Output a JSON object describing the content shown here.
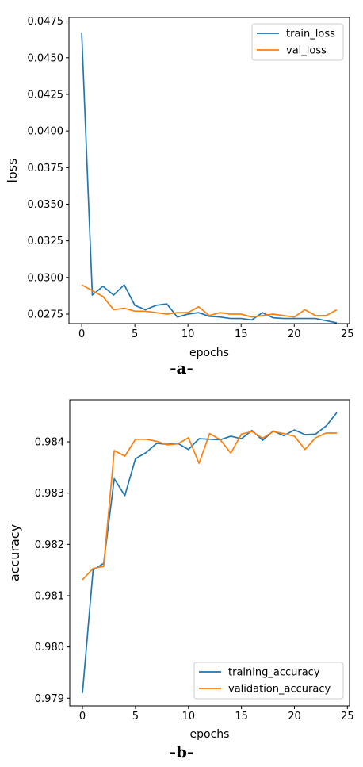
{
  "captions": [
    "-a-",
    "-b-"
  ],
  "colors": {
    "blue": "#1f77b4",
    "orange": "#ff7f0e",
    "axis": "#000000",
    "background": "#ffffff"
  },
  "chart_data": [
    {
      "type": "line",
      "title": "",
      "xlabel": "epochs",
      "ylabel": "loss",
      "xlim": [
        -1.2,
        25.2
      ],
      "ylim": [
        0.02685,
        0.04775
      ],
      "xticks": [
        0,
        5,
        10,
        15,
        20,
        25
      ],
      "xtick_labels": [
        "0",
        "5",
        "10",
        "15",
        "20",
        "25"
      ],
      "yticks": [
        0.0275,
        0.03,
        0.0325,
        0.035,
        0.0375,
        0.04,
        0.0425,
        0.045,
        0.0475
      ],
      "ytick_labels": [
        "0.0275",
        "0.0300",
        "0.0325",
        "0.0350",
        "0.0375",
        "0.0400",
        "0.0425",
        "0.0450",
        "0.0475"
      ],
      "grid": false,
      "legend_position": "top-right",
      "x": [
        0,
        1,
        2,
        3,
        4,
        5,
        6,
        7,
        8,
        9,
        10,
        11,
        12,
        13,
        14,
        15,
        16,
        17,
        18,
        19,
        20,
        21,
        22,
        23,
        24
      ],
      "series": [
        {
          "name": "train_loss",
          "color": "#1f77b4",
          "values": [
            0.0467,
            0.0288,
            0.0294,
            0.0288,
            0.0295,
            0.0281,
            0.0278,
            0.0281,
            0.0282,
            0.0273,
            0.0275,
            0.0276,
            0.02735,
            0.0273,
            0.0272,
            0.0272,
            0.0271,
            0.0276,
            0.02725,
            0.0272,
            0.0272,
            0.0272,
            0.0272,
            0.02705,
            0.0269
          ]
        },
        {
          "name": "val_loss",
          "color": "#ff7f0e",
          "values": [
            0.0295,
            0.0291,
            0.0287,
            0.0278,
            0.0279,
            0.0277,
            0.0277,
            0.0276,
            0.0275,
            0.0276,
            0.0276,
            0.028,
            0.0274,
            0.0276,
            0.0275,
            0.0275,
            0.0273,
            0.0274,
            0.0275,
            0.0274,
            0.0273,
            0.0278,
            0.0274,
            0.0274,
            0.0278
          ]
        }
      ]
    },
    {
      "type": "line",
      "title": "",
      "xlabel": "epochs",
      "ylabel": "accuracy",
      "xlim": [
        -1.2,
        25.2
      ],
      "ylim": [
        0.97885,
        0.98482
      ],
      "xticks": [
        0,
        5,
        10,
        15,
        20,
        25
      ],
      "xtick_labels": [
        "0",
        "5",
        "10",
        "15",
        "20",
        "25"
      ],
      "yticks": [
        0.979,
        0.98,
        0.981,
        0.982,
        0.983,
        0.984
      ],
      "ytick_labels": [
        "0.979",
        "0.980",
        "0.981",
        "0.982",
        "0.983",
        "0.984"
      ],
      "grid": false,
      "legend_position": "bottom-right",
      "x": [
        0,
        1,
        2,
        3,
        4,
        5,
        6,
        7,
        8,
        9,
        10,
        11,
        12,
        13,
        14,
        15,
        16,
        17,
        18,
        19,
        20,
        21,
        22,
        23,
        24
      ],
      "series": [
        {
          "name": "training_accuracy",
          "color": "#1f77b4",
          "values": [
            0.9791,
            0.9815,
            0.98163,
            0.98328,
            0.98295,
            0.98367,
            0.98379,
            0.98397,
            0.98395,
            0.98397,
            0.98385,
            0.98406,
            0.98405,
            0.98404,
            0.98411,
            0.98406,
            0.98422,
            0.98403,
            0.98421,
            0.98412,
            0.98423,
            0.98414,
            0.98415,
            0.98431,
            0.98457
          ]
        },
        {
          "name": "validation_accuracy",
          "color": "#ff7f0e",
          "values": [
            0.98131,
            0.98153,
            0.98157,
            0.98383,
            0.98372,
            0.98405,
            0.98405,
            0.98401,
            0.98394,
            0.98396,
            0.98408,
            0.98358,
            0.98416,
            0.98404,
            0.98378,
            0.98415,
            0.9842,
            0.98407,
            0.9842,
            0.98416,
            0.98411,
            0.98385,
            0.98408,
            0.98417,
            0.98417
          ]
        }
      ]
    }
  ]
}
